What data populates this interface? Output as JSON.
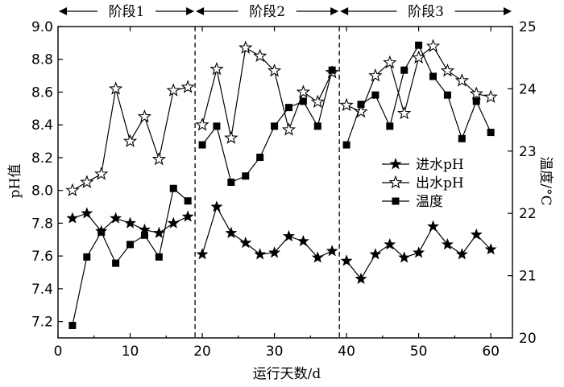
{
  "chart_data": {
    "type": "line",
    "title": "",
    "xlabel": "运行天数/d",
    "ylabel_left": "pH值",
    "ylabel_right": "温度/°C",
    "xlim": [
      0,
      63
    ],
    "ylim_left": [
      7.1,
      9.0
    ],
    "ylim_right": [
      20,
      25
    ],
    "x_ticks": [
      0,
      10,
      20,
      30,
      40,
      50,
      60
    ],
    "y_left_ticks": [
      7.2,
      7.4,
      7.6,
      7.8,
      8.0,
      8.2,
      8.4,
      8.6,
      8.8,
      9.0
    ],
    "y_right_ticks": [
      20,
      21,
      22,
      23,
      24,
      25
    ],
    "grid": false,
    "stages": [
      {
        "label": "阶段1",
        "start": 0,
        "end": 19
      },
      {
        "label": "阶段2",
        "start": 19,
        "end": 39
      },
      {
        "label": "阶段3",
        "start": 39,
        "end": 63
      }
    ],
    "stage_boundaries": [
      19,
      39
    ],
    "segments": [
      [
        0,
        19
      ],
      [
        19,
        39
      ],
      [
        39,
        63
      ]
    ],
    "legend_position": "center-right",
    "series": [
      {
        "name": "进水pH",
        "axis": "left",
        "marker": "star-filled",
        "x": [
          2,
          4,
          6,
          8,
          10,
          12,
          14,
          16,
          18,
          20,
          22,
          24,
          26,
          28,
          30,
          32,
          34,
          36,
          38,
          40,
          42,
          44,
          46,
          48,
          50,
          52,
          54,
          56,
          58,
          60
        ],
        "y": [
          7.83,
          7.86,
          7.75,
          7.83,
          7.8,
          7.76,
          7.74,
          7.8,
          7.84,
          7.61,
          7.9,
          7.74,
          7.68,
          7.61,
          7.62,
          7.72,
          7.69,
          7.59,
          7.63,
          7.57,
          7.46,
          7.61,
          7.67,
          7.59,
          7.62,
          7.78,
          7.67,
          7.61,
          7.73,
          7.64
        ]
      },
      {
        "name": "出水pH",
        "axis": "left",
        "marker": "star-hollow",
        "x": [
          2,
          4,
          6,
          8,
          10,
          12,
          14,
          16,
          18,
          20,
          22,
          24,
          26,
          28,
          30,
          32,
          34,
          36,
          38,
          40,
          42,
          44,
          46,
          48,
          50,
          52,
          54,
          56,
          58,
          60
        ],
        "y": [
          8.0,
          8.05,
          8.1,
          8.62,
          8.3,
          8.45,
          8.19,
          8.61,
          8.63,
          8.4,
          8.74,
          8.32,
          8.87,
          8.82,
          8.73,
          8.37,
          8.6,
          8.54,
          8.72,
          8.52,
          8.48,
          8.7,
          8.78,
          8.47,
          8.81,
          8.88,
          8.73,
          8.67,
          8.59,
          8.57
        ]
      },
      {
        "name": "温度",
        "axis": "right",
        "marker": "square-filled",
        "x": [
          2,
          4,
          6,
          8,
          10,
          12,
          14,
          16,
          18,
          20,
          22,
          24,
          26,
          28,
          30,
          32,
          34,
          36,
          38,
          40,
          42,
          44,
          46,
          48,
          50,
          52,
          54,
          56,
          58,
          60
        ],
        "y": [
          20.2,
          21.3,
          21.7,
          21.2,
          21.5,
          21.65,
          21.3,
          22.4,
          22.2,
          23.1,
          23.4,
          22.5,
          22.6,
          22.9,
          23.4,
          23.7,
          23.8,
          23.4,
          24.3,
          23.1,
          23.75,
          23.9,
          23.4,
          24.3,
          24.7,
          24.2,
          23.9,
          23.2,
          23.8,
          23.3
        ]
      }
    ]
  }
}
